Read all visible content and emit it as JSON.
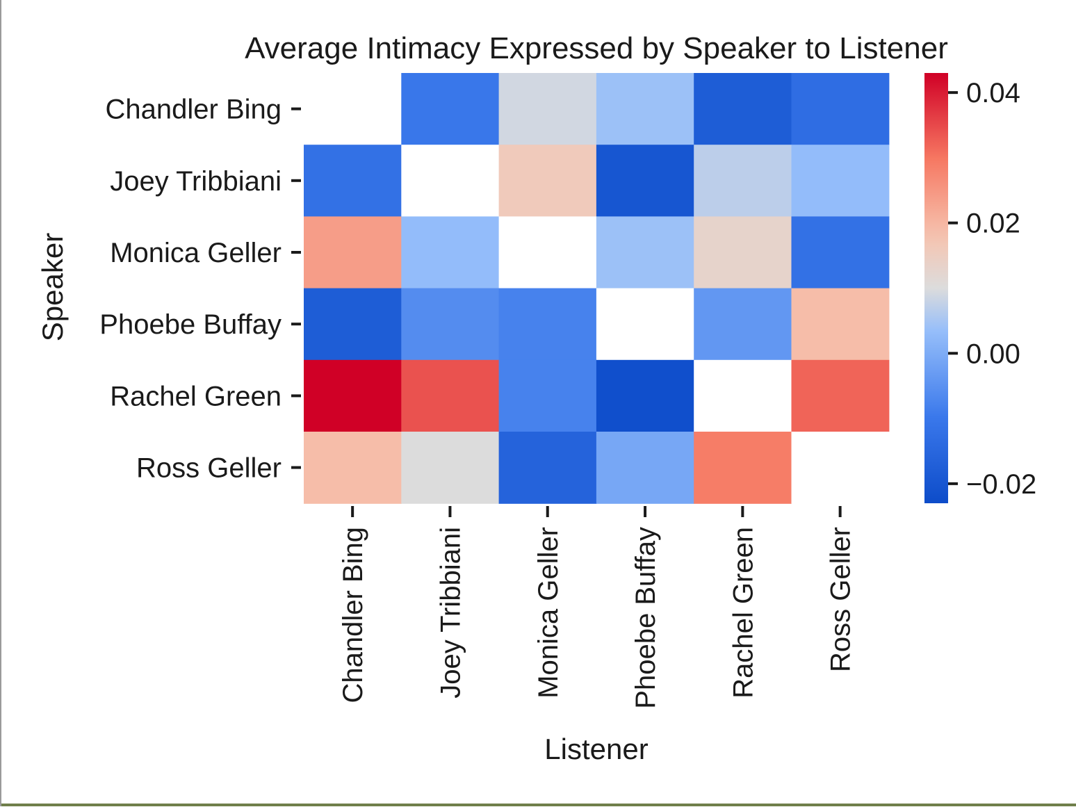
{
  "chart_data": {
    "type": "heatmap",
    "title": "Average Intimacy Expressed by Speaker to Listener",
    "xlabel": "Listener",
    "ylabel": "Speaker",
    "x_categories": [
      "Chandler Bing",
      "Joey Tribbiani",
      "Monica Geller",
      "Phoebe Buffay",
      "Rachel Green",
      "Ross Geller"
    ],
    "y_categories": [
      "Chandler Bing",
      "Joey Tribbiani",
      "Monica Geller",
      "Phoebe Buffay",
      "Rachel Green",
      "Ross Geller"
    ],
    "values": [
      [
        null,
        -0.01,
        0.009,
        0.004,
        -0.018,
        -0.013
      ],
      [
        -0.012,
        null,
        0.016,
        -0.02,
        0.007,
        0.003
      ],
      [
        0.024,
        0.003,
        null,
        0.004,
        0.013,
        -0.012
      ],
      [
        -0.018,
        -0.006,
        -0.008,
        null,
        -0.004,
        0.019
      ],
      [
        0.043,
        0.034,
        -0.008,
        -0.022,
        null,
        0.032
      ],
      [
        0.019,
        0.01,
        -0.016,
        -0.001,
        0.029,
        null
      ]
    ],
    "colormap": "coolwarm",
    "vmin": -0.023,
    "vmax": 0.043,
    "colorbar_ticks": [
      0.04,
      0.02,
      0.0,
      -0.02
    ],
    "colorbar_tick_labels": [
      "0.04",
      "0.02",
      "0.00",
      "−0.02"
    ],
    "colors": {
      "low": "#0d4cc9",
      "mid": "#dcdcdc",
      "high": "#d00026"
    }
  }
}
